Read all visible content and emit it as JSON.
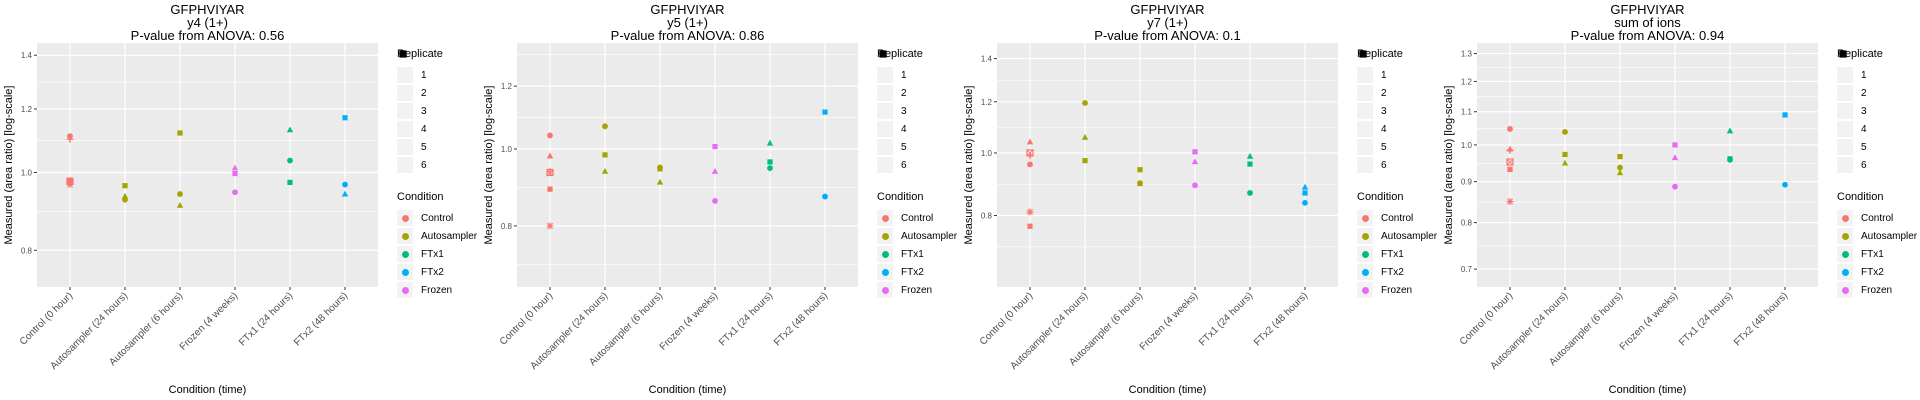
{
  "replicate_legend": {
    "title": "Replicate",
    "items": [
      {
        "label": "1",
        "shape": "circle"
      },
      {
        "label": "2",
        "shape": "triangle"
      },
      {
        "label": "3",
        "shape": "square"
      },
      {
        "label": "4",
        "shape": "plus"
      },
      {
        "label": "5",
        "shape": "boxed-square"
      },
      {
        "label": "6",
        "shape": "asterisk"
      }
    ]
  },
  "condition_legend": {
    "title": "Condition",
    "items": [
      {
        "label": "Control",
        "color": "#F8766D"
      },
      {
        "label": "Autosampler",
        "color": "#A3A500"
      },
      {
        "label": "FTx1",
        "color": "#00BF7D"
      },
      {
        "label": "FTx2",
        "color": "#00B0F6"
      },
      {
        "label": "Frozen",
        "color": "#E76BF3"
      }
    ]
  },
  "chart_data": [
    {
      "type": "scatter",
      "title": "GFPHVIYAR",
      "subtitle": "y4 (1+)",
      "pvalue_label": "P-value from ANOVA: 0.56",
      "xlabel": "Condition (time)",
      "ylabel": "Measured (area ratio) [log-scale]",
      "yscale": "log",
      "ylim": [
        0.72,
        1.45
      ],
      "yticks": [
        0.8,
        1.0,
        1.2,
        1.4
      ],
      "ytick_labels": [
        "0.8",
        "1.0",
        "1.2",
        "1.4"
      ],
      "categories": [
        "Control (0 hour)",
        "Autosampler (24 hours)",
        "Autosampler (6 hours)",
        "Frozen (4 weeks)",
        "FTx1 (24 hours)",
        "FTx2 (48 hours)"
      ],
      "grid": true,
      "points": [
        {
          "x": 0,
          "cond": "Control",
          "rep": 1,
          "y": 1.11
        },
        {
          "x": 0,
          "cond": "Control",
          "rep": 4,
          "y": 1.1
        },
        {
          "x": 0,
          "cond": "Control",
          "rep": 3,
          "y": 0.978
        },
        {
          "x": 0,
          "cond": "Control",
          "rep": 5,
          "y": 0.975
        },
        {
          "x": 0,
          "cond": "Control",
          "rep": 6,
          "y": 0.966
        },
        {
          "x": 1,
          "cond": "Autosampler",
          "rep": 3,
          "y": 0.963
        },
        {
          "x": 1,
          "cond": "Autosampler",
          "rep": 2,
          "y": 0.934
        },
        {
          "x": 1,
          "cond": "Autosampler",
          "rep": 1,
          "y": 0.925
        },
        {
          "x": 2,
          "cond": "Autosampler",
          "rep": 3,
          "y": 1.12
        },
        {
          "x": 2,
          "cond": "Autosampler",
          "rep": 1,
          "y": 0.94
        },
        {
          "x": 2,
          "cond": "Autosampler",
          "rep": 2,
          "y": 0.91
        },
        {
          "x": 3,
          "cond": "Frozen",
          "rep": 2,
          "y": 1.013
        },
        {
          "x": 3,
          "cond": "Frozen",
          "rep": 3,
          "y": 0.997
        },
        {
          "x": 3,
          "cond": "Frozen",
          "rep": 1,
          "y": 0.945
        },
        {
          "x": 4,
          "cond": "FTx1",
          "rep": 2,
          "y": 1.13
        },
        {
          "x": 4,
          "cond": "FTx1",
          "rep": 1,
          "y": 1.035
        },
        {
          "x": 4,
          "cond": "FTx1",
          "rep": 3,
          "y": 0.972
        },
        {
          "x": 5,
          "cond": "FTx2",
          "rep": 3,
          "y": 1.17
        },
        {
          "x": 5,
          "cond": "FTx2",
          "rep": 1,
          "y": 0.966
        },
        {
          "x": 5,
          "cond": "FTx2",
          "rep": 2,
          "y": 0.94
        }
      ]
    },
    {
      "type": "scatter",
      "title": "GFPHVIYAR",
      "subtitle": "y5 (1+)",
      "pvalue_label": "P-value from ANOVA: 0.86",
      "xlabel": "Condition (time)",
      "ylabel": "Measured (area ratio) [log-scale]",
      "yscale": "log",
      "ylim": [
        0.67,
        1.36
      ],
      "yticks": [
        0.8,
        1.0,
        1.2
      ],
      "ytick_labels": [
        "0.8",
        "1.0",
        "1.2"
      ],
      "categories": [
        "Control (0 hour)",
        "Autosampler (24 hours)",
        "Autosampler (6 hours)",
        "Frozen (4 weeks)",
        "FTx1 (24 hours)",
        "FTx2 (48 hours)"
      ],
      "grid": true,
      "points": [
        {
          "x": 0,
          "cond": "Control",
          "rep": 1,
          "y": 1.04
        },
        {
          "x": 0,
          "cond": "Control",
          "rep": 2,
          "y": 0.98
        },
        {
          "x": 0,
          "cond": "Control",
          "rep": 5,
          "y": 0.934
        },
        {
          "x": 0,
          "cond": "Control",
          "rep": 4,
          "y": 0.936
        },
        {
          "x": 0,
          "cond": "Control",
          "rep": 3,
          "y": 0.89
        },
        {
          "x": 0,
          "cond": "Control",
          "rep": 6,
          "y": 0.8
        },
        {
          "x": 1,
          "cond": "Autosampler",
          "rep": 1,
          "y": 1.068
        },
        {
          "x": 1,
          "cond": "Autosampler",
          "rep": 3,
          "y": 0.983
        },
        {
          "x": 1,
          "cond": "Autosampler",
          "rep": 2,
          "y": 0.937
        },
        {
          "x": 2,
          "cond": "Autosampler",
          "rep": 1,
          "y": 0.948
        },
        {
          "x": 2,
          "cond": "Autosampler",
          "rep": 3,
          "y": 0.944
        },
        {
          "x": 2,
          "cond": "Autosampler",
          "rep": 2,
          "y": 0.908
        },
        {
          "x": 3,
          "cond": "Frozen",
          "rep": 3,
          "y": 1.007
        },
        {
          "x": 3,
          "cond": "Frozen",
          "rep": 2,
          "y": 0.937
        },
        {
          "x": 3,
          "cond": "Frozen",
          "rep": 1,
          "y": 0.86
        },
        {
          "x": 4,
          "cond": "FTx1",
          "rep": 2,
          "y": 1.017
        },
        {
          "x": 4,
          "cond": "FTx1",
          "rep": 3,
          "y": 0.963
        },
        {
          "x": 4,
          "cond": "FTx1",
          "rep": 1,
          "y": 0.946
        },
        {
          "x": 5,
          "cond": "FTx2",
          "rep": 3,
          "y": 1.113
        },
        {
          "x": 5,
          "cond": "FTx2",
          "rep": 1,
          "y": 0.871
        }
      ]
    },
    {
      "type": "scatter",
      "title": "GFPHVIYAR",
      "subtitle": "y7 (1+)",
      "pvalue_label": "P-value from ANOVA: 0.1",
      "xlabel": "Condition (time)",
      "ylabel": "Measured (area ratio) [log-scale]",
      "yscale": "log",
      "ylim": [
        0.62,
        1.48
      ],
      "yticks": [
        0.8,
        1.0,
        1.2,
        1.4
      ],
      "ytick_labels": [
        "0.8",
        "1.0",
        "1.2",
        "1.4"
      ],
      "categories": [
        "Control (0 hour)",
        "Autosampler (24 hours)",
        "Autosampler (6 hours)",
        "Frozen (4 weeks)",
        "FTx1 (24 hours)",
        "FTx2 (48 hours)"
      ],
      "grid": true,
      "points": [
        {
          "x": 0,
          "cond": "Control",
          "rep": 2,
          "y": 1.04
        },
        {
          "x": 0,
          "cond": "Control",
          "rep": 5,
          "y": 1.0
        },
        {
          "x": 0,
          "cond": "Control",
          "rep": 4,
          "y": 0.99
        },
        {
          "x": 0,
          "cond": "Control",
          "rep": 1,
          "y": 0.96
        },
        {
          "x": 0,
          "cond": "Control",
          "rep": 6,
          "y": 0.81
        },
        {
          "x": 0,
          "cond": "Control",
          "rep": 3,
          "y": 0.77
        },
        {
          "x": 1,
          "cond": "Autosampler",
          "rep": 1,
          "y": 1.195
        },
        {
          "x": 1,
          "cond": "Autosampler",
          "rep": 2,
          "y": 1.057
        },
        {
          "x": 1,
          "cond": "Autosampler",
          "rep": 3,
          "y": 0.973
        },
        {
          "x": 2,
          "cond": "Autosampler",
          "rep": 3,
          "y": 0.942
        },
        {
          "x": 2,
          "cond": "Autosampler",
          "rep": 1,
          "y": 0.898
        },
        {
          "x": 2,
          "cond": "Autosampler",
          "rep": 2,
          "y": 0.896
        },
        {
          "x": 3,
          "cond": "Frozen",
          "rep": 3,
          "y": 1.004
        },
        {
          "x": 3,
          "cond": "Frozen",
          "rep": 2,
          "y": 0.969
        },
        {
          "x": 3,
          "cond": "Frozen",
          "rep": 1,
          "y": 0.891
        },
        {
          "x": 4,
          "cond": "FTx1",
          "rep": 2,
          "y": 0.988
        },
        {
          "x": 4,
          "cond": "FTx1",
          "rep": 3,
          "y": 0.961
        },
        {
          "x": 4,
          "cond": "FTx1",
          "rep": 1,
          "y": 0.867
        },
        {
          "x": 5,
          "cond": "FTx2",
          "rep": 2,
          "y": 0.885
        },
        {
          "x": 5,
          "cond": "FTx2",
          "rep": 3,
          "y": 0.867
        },
        {
          "x": 5,
          "cond": "FTx2",
          "rep": 1,
          "y": 0.837
        }
      ]
    },
    {
      "type": "scatter",
      "title": "GFPHVIYAR",
      "subtitle": "sum of ions",
      "pvalue_label": "P-value from ANOVA: 0.94",
      "xlabel": "Condition (time)",
      "ylabel": "Measured (area ratio) [log-scale]",
      "yscale": "log",
      "ylim": [
        0.665,
        1.34
      ],
      "yticks": [
        0.7,
        0.8,
        0.9,
        1.0,
        1.1,
        1.2,
        1.3
      ],
      "ytick_labels": [
        "0.7",
        "0.8",
        "0.9",
        "1.0",
        "1.1",
        "1.2",
        "1.3"
      ],
      "categories": [
        "Control (0 hour)",
        "Autosampler (24 hours)",
        "Autosampler (6 hours)",
        "Frozen (4 weeks)",
        "FTx1 (24 hours)",
        "FTx2 (48 hours)"
      ],
      "grid": true,
      "points": [
        {
          "x": 0,
          "cond": "Control",
          "rep": 1,
          "y": 1.047
        },
        {
          "x": 0,
          "cond": "Control",
          "rep": 4,
          "y": 0.985
        },
        {
          "x": 0,
          "cond": "Control",
          "rep": 2,
          "y": 0.988
        },
        {
          "x": 0,
          "cond": "Control",
          "rep": 5,
          "y": 0.952
        },
        {
          "x": 0,
          "cond": "Control",
          "rep": 3,
          "y": 0.932
        },
        {
          "x": 0,
          "cond": "Control",
          "rep": 6,
          "y": 0.85
        },
        {
          "x": 1,
          "cond": "Autosampler",
          "rep": 1,
          "y": 1.038
        },
        {
          "x": 1,
          "cond": "Autosampler",
          "rep": 3,
          "y": 0.973
        },
        {
          "x": 1,
          "cond": "Autosampler",
          "rep": 2,
          "y": 0.949
        },
        {
          "x": 2,
          "cond": "Autosampler",
          "rep": 3,
          "y": 0.967
        },
        {
          "x": 2,
          "cond": "Autosampler",
          "rep": 1,
          "y": 0.937
        },
        {
          "x": 2,
          "cond": "Autosampler",
          "rep": 2,
          "y": 0.923
        },
        {
          "x": 3,
          "cond": "Frozen",
          "rep": 3,
          "y": 1.0
        },
        {
          "x": 3,
          "cond": "Frozen",
          "rep": 2,
          "y": 0.964
        },
        {
          "x": 3,
          "cond": "Frozen",
          "rep": 1,
          "y": 0.887
        },
        {
          "x": 4,
          "cond": "FTx1",
          "rep": 2,
          "y": 1.041
        },
        {
          "x": 4,
          "cond": "FTx1",
          "rep": 3,
          "y": 0.961
        },
        {
          "x": 4,
          "cond": "FTx1",
          "rep": 1,
          "y": 0.958
        },
        {
          "x": 5,
          "cond": "FTx2",
          "rep": 3,
          "y": 1.09
        },
        {
          "x": 5,
          "cond": "FTx2",
          "rep": 1,
          "y": 0.892
        }
      ]
    }
  ]
}
